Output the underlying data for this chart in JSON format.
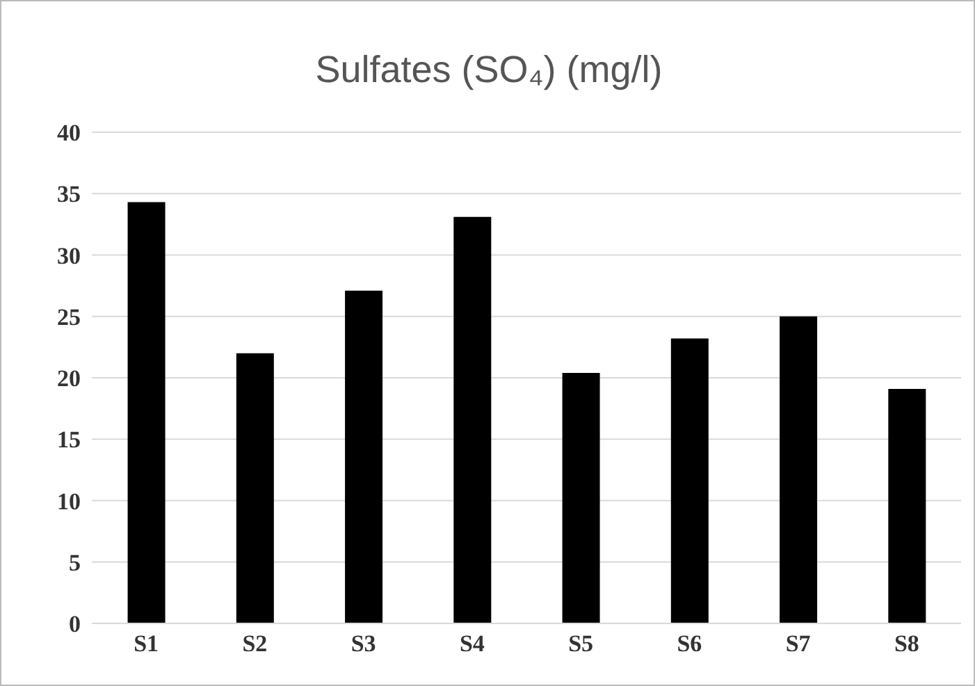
{
  "chart_data": {
    "type": "bar",
    "title": "Sulfates (SO₄) (mg/l)",
    "categories": [
      "S1",
      "S2",
      "S3",
      "S4",
      "S5",
      "S6",
      "S7",
      "S8"
    ],
    "values": [
      34.3,
      22.0,
      27.1,
      33.1,
      20.4,
      23.2,
      25.0,
      19.1
    ],
    "color": "#000000",
    "ylim": [
      0,
      40
    ],
    "yticks": [
      0,
      5,
      10,
      15,
      20,
      25,
      30,
      35,
      40
    ],
    "grid": "y"
  }
}
